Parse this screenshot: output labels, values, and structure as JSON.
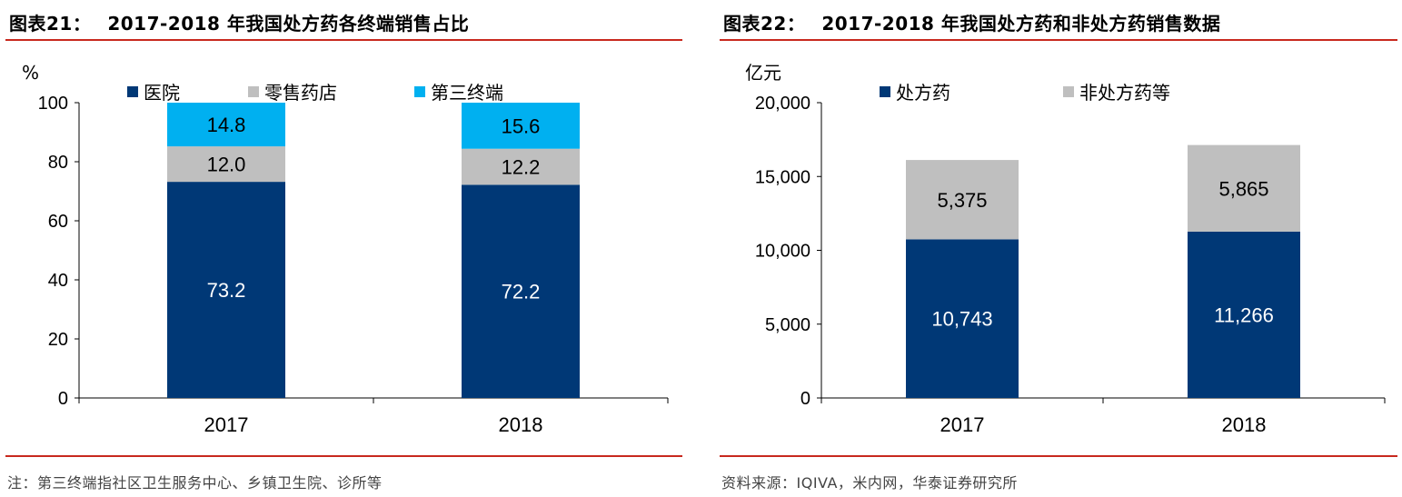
{
  "left_panel": {
    "title_prefix": "图表21：",
    "title_text": "2017-2018 年我国处方药各终端销售占比",
    "footnote": "注：第三终端指社区卫生服务中心、乡镇卫生院、诊所等"
  },
  "right_panel": {
    "title_prefix": "图表22：",
    "title_text": "2017-2018 年我国处方药和非处方药销售数据",
    "footnote": "资料来源：IQIVA，米内网，华泰证券研究所"
  },
  "colors": {
    "rule": "#c8281e",
    "navy": "#003876",
    "gray": "#bfbfbf",
    "cyan": "#00b0f0"
  },
  "chart_data": [
    {
      "type": "bar",
      "stacked": true,
      "categories": [
        "2017",
        "2018"
      ],
      "ylabel": "%",
      "ylim": [
        0,
        100
      ],
      "yticks": [
        "0",
        "20",
        "40",
        "60",
        "80",
        "100"
      ],
      "legend_position": "top",
      "series": [
        {
          "name": "医院",
          "values": [
            73.2,
            72.2
          ],
          "labels": [
            "73.2",
            "72.2"
          ],
          "color": "#003876",
          "label_color": "#ffffff"
        },
        {
          "name": "零售药店",
          "values": [
            12.0,
            12.2
          ],
          "labels": [
            "12.0",
            "12.2"
          ],
          "color": "#bfbfbf",
          "label_color": "#000000"
        },
        {
          "name": "第三终端",
          "values": [
            14.8,
            15.6
          ],
          "labels": [
            "14.8",
            "15.6"
          ],
          "color": "#00b0f0",
          "label_color": "#000000"
        }
      ]
    },
    {
      "type": "bar",
      "stacked": true,
      "categories": [
        "2017",
        "2018"
      ],
      "ylabel": "亿元",
      "ylim": [
        0,
        20000
      ],
      "yticks": [
        "0",
        "5,000",
        "10,000",
        "15,000",
        "20,000"
      ],
      "legend_position": "top",
      "series": [
        {
          "name": "处方药",
          "values": [
            10743,
            11266
          ],
          "labels": [
            "10,743",
            "11,266"
          ],
          "color": "#003876",
          "label_color": "#ffffff"
        },
        {
          "name": "非处方药等",
          "values": [
            5375,
            5865
          ],
          "labels": [
            "5,375",
            "5,865"
          ],
          "color": "#bfbfbf",
          "label_color": "#000000"
        }
      ]
    }
  ]
}
